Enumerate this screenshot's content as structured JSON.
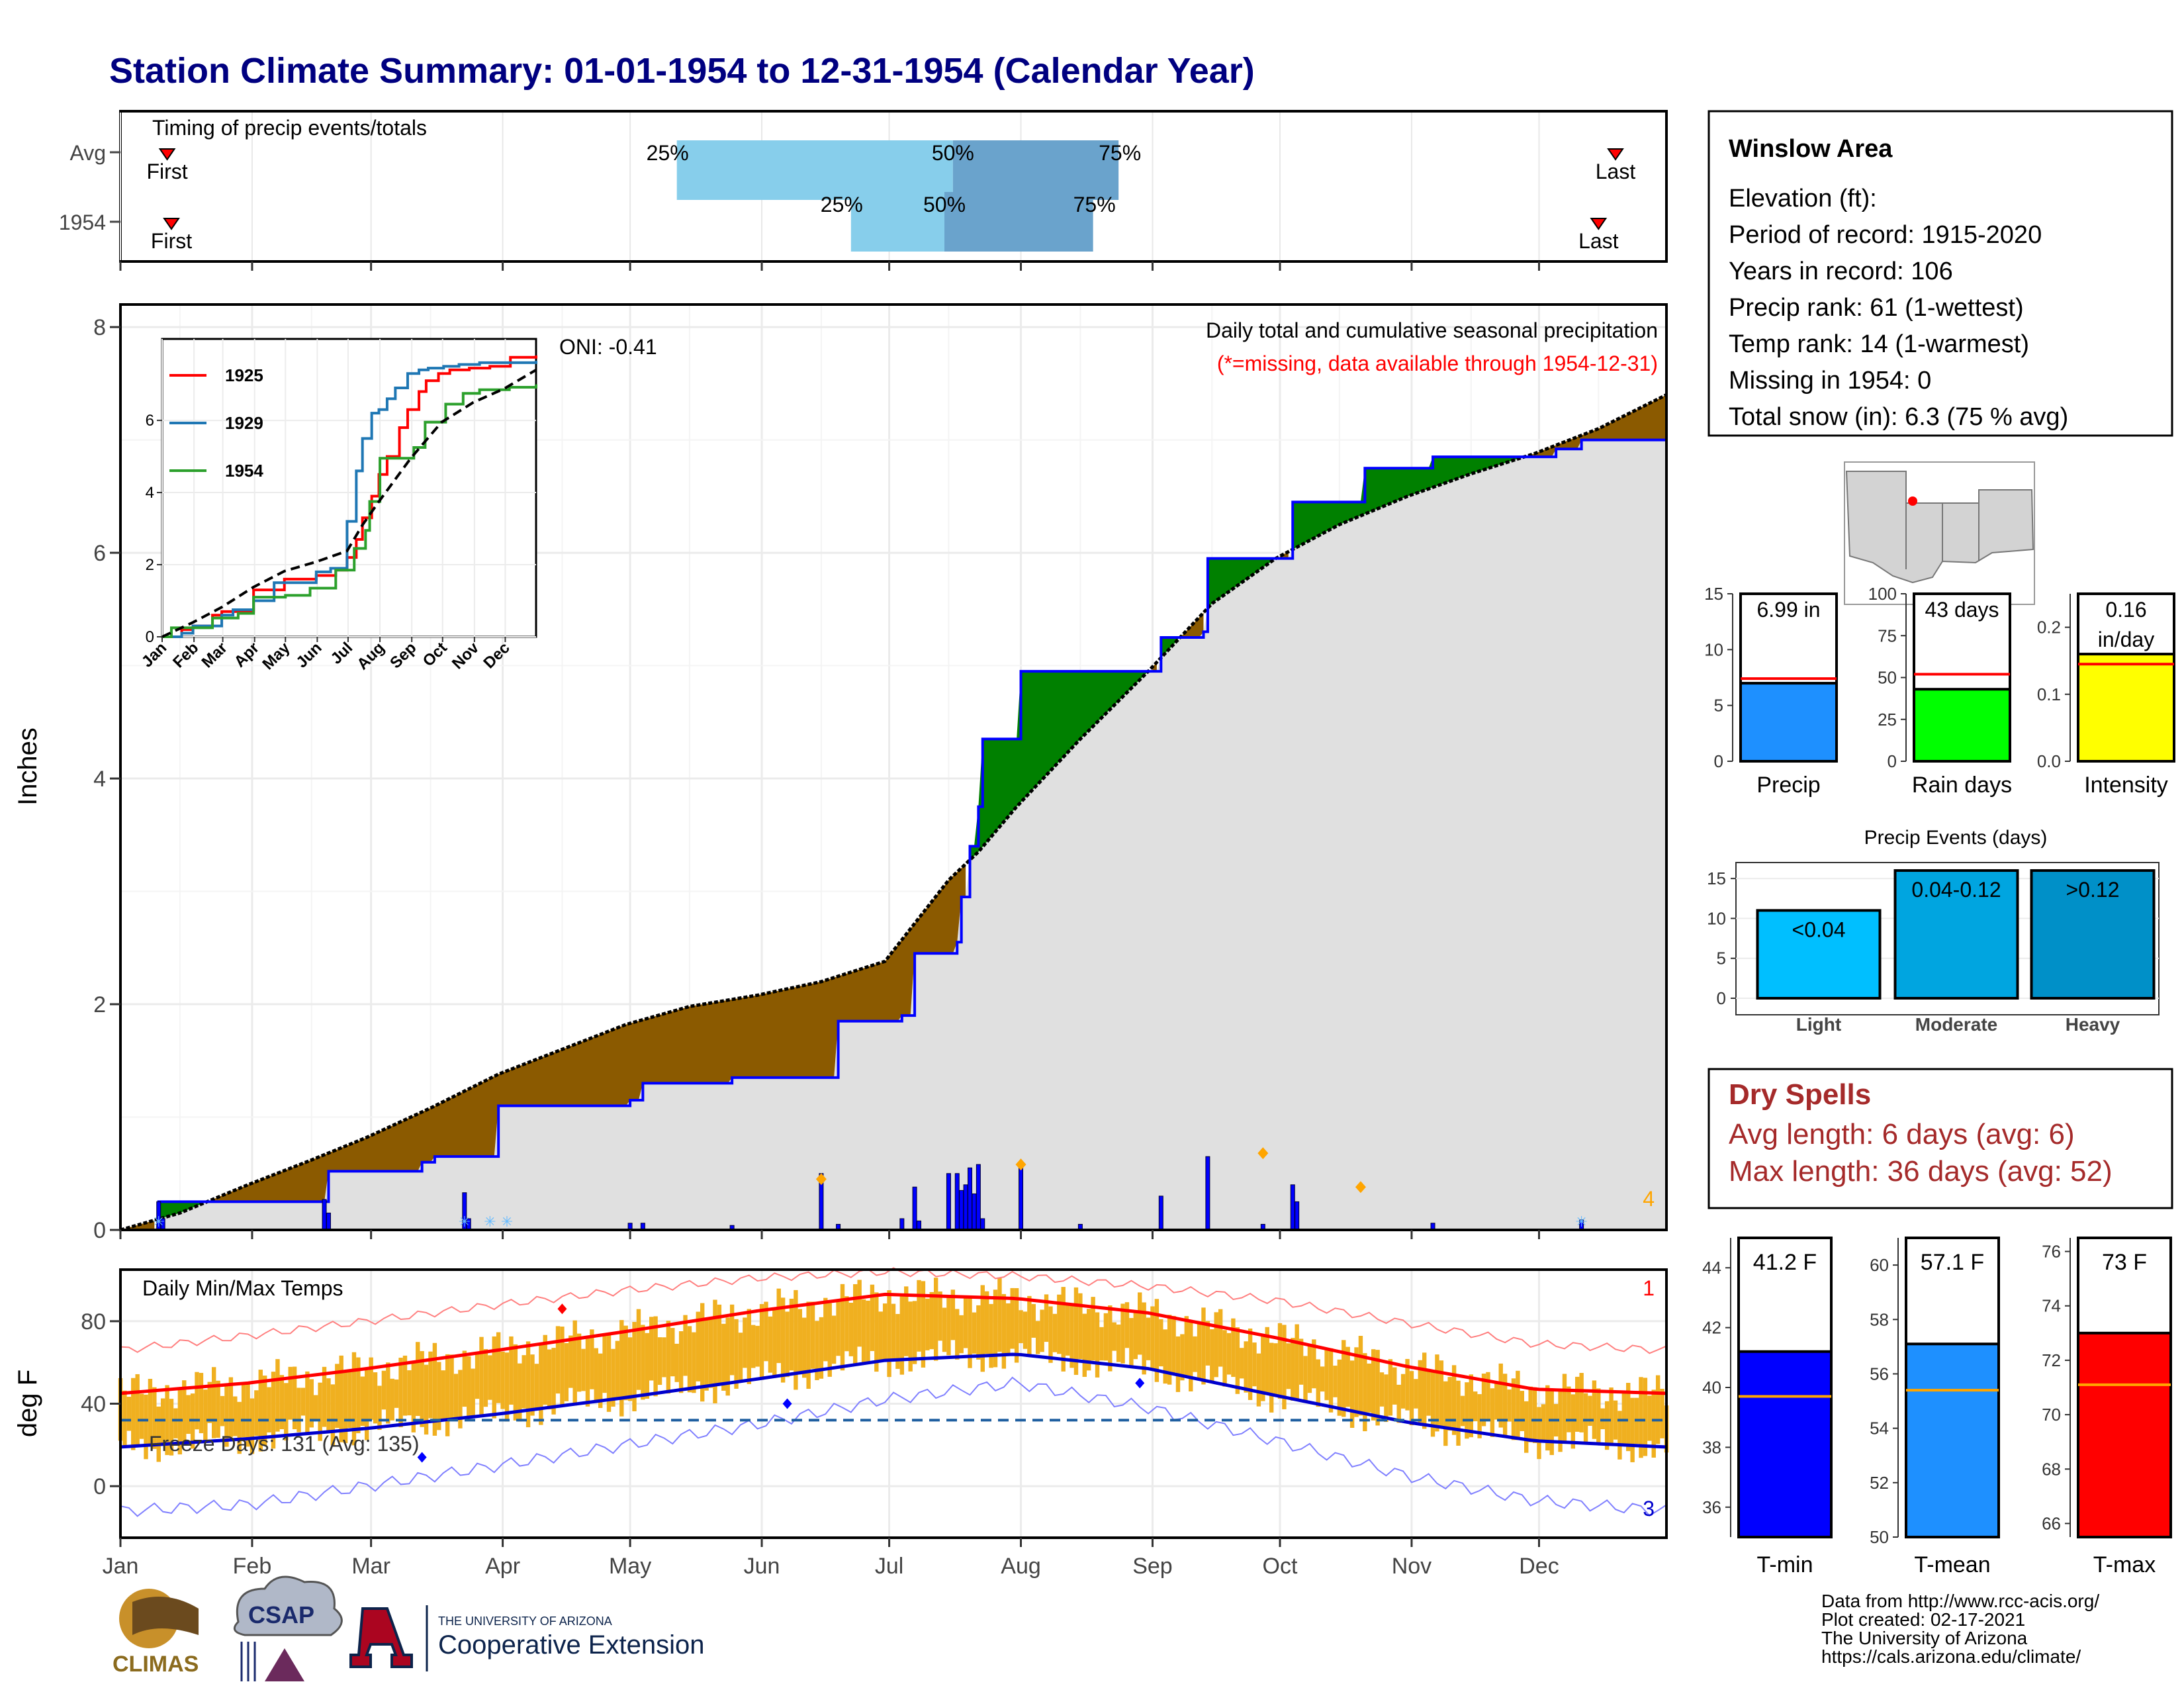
{
  "title": "Station Climate Summary: 01-01-1954 to 12-31-1954 (Calendar Year)",
  "months": [
    "Jan",
    "Feb",
    "Mar",
    "Apr",
    "May",
    "Jun",
    "Jul",
    "Aug",
    "Sep",
    "Oct",
    "Nov",
    "Dec"
  ],
  "colors": {
    "title": "#000080",
    "cum_current": "#0000ff",
    "above_avg": "#008000",
    "below_avg": "#8b5a00",
    "fill_gray": "#e0e0e0",
    "precip_bar": "#0000ff",
    "temp_bar": "#f0b020",
    "tmax_line": "#ff0000",
    "tmin_line": "#0000cc",
    "dry_spell_text": "#a52a2a",
    "missing_note": "#ff0000"
  },
  "timing": {
    "label": "Timing of precip events/totals",
    "rows": [
      {
        "name": "Avg",
        "first_label": "First",
        "last_label": "Last",
        "first_doy": 12,
        "last_doy": 353,
        "p25_doy": 132,
        "p50_doy": 197,
        "p75_doy": 236,
        "p25_label": "25%",
        "p50_label": "50%",
        "p75_label": "75%"
      },
      {
        "name": "1954",
        "first_label": "First",
        "last_label": "Last",
        "first_doy": 13,
        "last_doy": 349,
        "p25_doy": 173,
        "p50_doy": 195,
        "p75_doy": 230,
        "p25_label": "25%",
        "p50_label": "50%",
        "p75_label": "75%"
      }
    ]
  },
  "chart_data": [
    {
      "id": "cumulative_precip",
      "type": "area",
      "title": "Daily total and cumulative seasonal precipitation",
      "subtitle": "(*=missing, data available through 1954-12-31)",
      "ylabel": "Inches",
      "ylim": [
        0,
        8.2
      ],
      "yticks": [
        0,
        2,
        4,
        6,
        8
      ],
      "oni_label": "ONI: -0.41",
      "right_count_label": "4",
      "avg_cumulative": {
        "x_doy": [
          1,
          15,
          31,
          46,
          59,
          74,
          90,
          105,
          120,
          135,
          151,
          166,
          181,
          196,
          203,
          212,
          227,
          243,
          258,
          273,
          288,
          304,
          319,
          334,
          349,
          365
        ],
        "y": [
          0,
          0.15,
          0.4,
          0.62,
          0.82,
          1.08,
          1.38,
          1.6,
          1.82,
          1.98,
          2.08,
          2.2,
          2.38,
          3.1,
          3.35,
          3.75,
          4.35,
          4.95,
          5.55,
          5.95,
          6.25,
          6.5,
          6.7,
          6.88,
          7.1,
          7.4
        ]
      },
      "year_cumulative": {
        "x_doy": [
          1,
          9,
          10,
          31,
          49,
          50,
          64,
          72,
          75,
          90,
          121,
          124,
          145,
          166,
          170,
          185,
          188,
          198,
          199,
          201,
          203,
          204,
          212,
          213,
          227,
          243,
          246,
          256,
          257,
          276,
          277,
          293,
          294,
          300,
          304,
          309,
          310,
          330,
          339,
          345,
          365
        ],
        "y": [
          0,
          0,
          0.25,
          0.25,
          0.25,
          0.52,
          0.52,
          0.6,
          0.65,
          1.1,
          1.15,
          1.3,
          1.35,
          1.35,
          1.85,
          1.9,
          2.45,
          2.55,
          2.95,
          3.4,
          3.75,
          4.35,
          4.35,
          4.95,
          4.95,
          4.95,
          5.25,
          5.3,
          5.95,
          5.95,
          6.45,
          6.45,
          6.75,
          6.75,
          6.75,
          6.75,
          6.85,
          6.85,
          6.92,
          7.0,
          7.0
        ]
      },
      "daily_bars": {
        "x_doy": [
          10,
          11,
          49,
          50,
          82,
          83,
          121,
          124,
          145,
          166,
          170,
          185,
          188,
          189,
          196,
          198,
          199,
          200,
          201,
          202,
          203,
          204,
          213,
          227,
          246,
          257,
          270,
          277,
          278,
          310,
          345
        ],
        "y": [
          0.25,
          0.1,
          0.27,
          0.15,
          0.33,
          0.1,
          0.06,
          0.06,
          0.04,
          0.5,
          0.05,
          0.1,
          0.38,
          0.08,
          0.5,
          0.5,
          0.35,
          0.4,
          0.55,
          0.32,
          0.58,
          0.1,
          0.6,
          0.05,
          0.3,
          0.65,
          0.05,
          0.4,
          0.25,
          0.06,
          0.09
        ]
      },
      "event_markers_doy": [
        166,
        213,
        270,
        293
      ],
      "event_markers_y": [
        0.45,
        0.58,
        0.68,
        0.38
      ],
      "inset": {
        "xticks": [
          "Jan",
          "Feb",
          "Mar",
          "Apr",
          "May",
          "Jun",
          "Jul",
          "Aug",
          "Sep",
          "Oct",
          "Nov",
          "Dec"
        ],
        "yticks": [
          0,
          2,
          4,
          6
        ],
        "ylim": [
          0,
          7.8
        ],
        "series": [
          {
            "name": "1925",
            "color": "#ff0000",
            "x_doy": [
              1,
              20,
              31,
              50,
              59,
              90,
              120,
              151,
              170,
              181,
              190,
              196,
              205,
              212,
              220,
              232,
              240,
              251,
              258,
              270,
              281,
              300,
              320,
              335,
              340,
              365
            ],
            "y": [
              0,
              0.2,
              0.3,
              0.6,
              0.7,
              1.3,
              1.6,
              1.7,
              1.85,
              2.2,
              2.7,
              3.3,
              3.9,
              4.5,
              5.0,
              5.8,
              6.3,
              6.8,
              7.1,
              7.3,
              7.4,
              7.45,
              7.5,
              7.5,
              7.75,
              7.8
            ]
          },
          {
            "name": "1929",
            "color": "#1f77b4",
            "x_doy": [
              1,
              20,
              31,
              59,
              70,
              90,
              110,
              151,
              165,
              181,
              190,
              196,
              205,
              212,
              220,
              228,
              240,
              251,
              260,
              275,
              290,
              310,
              330,
              350,
              365
            ],
            "y": [
              0,
              0.1,
              0.3,
              0.6,
              0.75,
              1.0,
              1.5,
              1.8,
              1.9,
              3.2,
              4.6,
              5.5,
              6.2,
              6.3,
              6.6,
              6.9,
              7.3,
              7.4,
              7.45,
              7.5,
              7.55,
              7.6,
              7.6,
              7.6,
              7.65
            ]
          },
          {
            "name": "1954",
            "color": "#2ca02c",
            "x_doy": [
              1,
              10,
              31,
              50,
              75,
              90,
              121,
              145,
              166,
              170,
              188,
              199,
              203,
              213,
              246,
              257,
              277,
              294,
              310,
              339,
              365
            ],
            "y": [
              0,
              0.25,
              0.25,
              0.52,
              0.65,
              1.1,
              1.15,
              1.35,
              1.35,
              1.85,
              2.45,
              2.95,
              3.75,
              4.95,
              5.25,
              5.95,
              6.45,
              6.75,
              6.85,
              6.92,
              7.0
            ]
          }
        ],
        "avg": {
          "x_doy": [
            1,
            31,
            59,
            90,
            120,
            151,
            181,
            196,
            212,
            243,
            273,
            304,
            334,
            365
          ],
          "y": [
            0,
            0.4,
            0.82,
            1.38,
            1.82,
            2.08,
            2.38,
            3.1,
            3.75,
            4.95,
            5.95,
            6.5,
            6.88,
            7.4
          ]
        }
      }
    },
    {
      "id": "summary_bars",
      "type": "bar",
      "panels": [
        {
          "name": "Precip",
          "value": 6.99,
          "value_label": "6.99 in",
          "avg": 7.4,
          "ylim": [
            0,
            15
          ],
          "yticks": [
            0,
            5,
            10,
            15
          ],
          "color": "#1e90ff"
        },
        {
          "name": "Rain days",
          "value": 43,
          "value_label": "43 days",
          "avg": 52,
          "ylim": [
            0,
            100
          ],
          "yticks": [
            0,
            25,
            50,
            75,
            100
          ],
          "color": "#00ff00"
        },
        {
          "name": "Intensity",
          "value": 0.16,
          "value_label": "0.16",
          "value_label_2": "in/day",
          "avg": 0.145,
          "ylim": [
            0,
            0.25
          ],
          "yticks": [
            0.0,
            0.1,
            0.2
          ],
          "ytick_labels": [
            "0.0",
            "0.1",
            "0.2"
          ],
          "color": "#ffff00"
        }
      ]
    },
    {
      "id": "precip_events",
      "type": "bar",
      "title": "Precip Events (days)",
      "categories": [
        "Light",
        "Moderate",
        "Heavy"
      ],
      "bar_labels": [
        "<0.04",
        "0.04-0.12",
        ">0.12"
      ],
      "values": [
        11,
        16,
        16
      ],
      "colors": [
        "#00bfff",
        "#00a5e0",
        "#0090c8"
      ],
      "ylim": [
        0,
        17
      ],
      "yticks": [
        0,
        5,
        10,
        15
      ]
    },
    {
      "id": "daily_temps",
      "type": "line",
      "label": "Daily Min/Max Temps",
      "ylabel": "deg F",
      "ylim": [
        -25,
        105
      ],
      "yticks": [
        0,
        40,
        80
      ],
      "freeze_label": "Freeze Days: 131 (Avg: 135)",
      "freeze_line": 32,
      "top_right_count": "1",
      "bottom_right_count": "3",
      "tmax_normal": {
        "x_doy": [
          1,
          31,
          59,
          90,
          120,
          151,
          181,
          212,
          243,
          273,
          304,
          334,
          365
        ],
        "y": [
          45,
          50,
          57,
          66,
          75,
          85,
          93,
          91,
          84,
          72,
          58,
          47,
          45
        ]
      },
      "tmin_normal": {
        "x_doy": [
          1,
          31,
          59,
          90,
          120,
          151,
          181,
          212,
          243,
          273,
          304,
          334,
          365
        ],
        "y": [
          19,
          23,
          28,
          35,
          43,
          52,
          61,
          64,
          57,
          44,
          31,
          22,
          19
        ]
      },
      "tmax_record": {
        "x_doy": [
          1,
          31,
          59,
          90,
          120,
          151,
          181,
          212,
          243,
          273,
          304,
          334,
          365
        ],
        "y": [
          66,
          73,
          80,
          88,
          95,
          101,
          104,
          102,
          97,
          90,
          79,
          69,
          66
        ]
      },
      "tmin_record": {
        "x_doy": [
          1,
          31,
          59,
          90,
          120,
          151,
          181,
          212,
          243,
          273,
          304,
          334,
          365
        ],
        "y": [
          -12,
          -9,
          0,
          10,
          20,
          30,
          42,
          50,
          38,
          22,
          5,
          -7,
          -12
        ]
      }
    },
    {
      "id": "temp_summary",
      "type": "bar",
      "panels": [
        {
          "name": "T-min",
          "value": 41.2,
          "value_label": "41.2 F",
          "avg": 39.7,
          "ylim": [
            35,
            45
          ],
          "yticks": [
            36,
            38,
            40,
            42,
            44
          ],
          "color": "#0000ff"
        },
        {
          "name": "T-mean",
          "value": 57.1,
          "value_label": "57.1 F",
          "avg": 55.4,
          "ylim": [
            50,
            61
          ],
          "yticks": [
            50,
            52,
            54,
            56,
            58,
            60
          ],
          "color": "#1e90ff"
        },
        {
          "name": "T-max",
          "value": 73,
          "value_label": "73 F",
          "avg": 71.1,
          "ylim": [
            65.5,
            76.5
          ],
          "yticks": [
            66,
            68,
            70,
            72,
            74,
            76
          ],
          "color": "#ff0000"
        }
      ]
    }
  ],
  "station": {
    "name": "Winslow Area",
    "lines": [
      "Elevation (ft):",
      "Period of record: 1915-2020",
      "Years in record: 106",
      "Precip rank: 61 (1-wettest)",
      "Temp rank: 14 (1-warmest)",
      "Missing in 1954: 0",
      "Total snow (in): 6.3 (75 % avg)"
    ]
  },
  "dry_spells": {
    "title": "Dry Spells",
    "avg": "Avg length: 6 days (avg: 6)",
    "max": "Max length: 36 days (avg: 52)"
  },
  "footer": {
    "lines": [
      "Data from http://www.rcc-acis.org/",
      "Plot created: 02-17-2021",
      "The University of Arizona",
      "https://cals.arizona.edu/climate/"
    ],
    "logo_climas": "CLIMAS",
    "logo_csap": "CSAP",
    "logo_univ_small": "THE UNIVERSITY OF ARIZONA",
    "logo_univ_big": "Cooperative Extension"
  }
}
